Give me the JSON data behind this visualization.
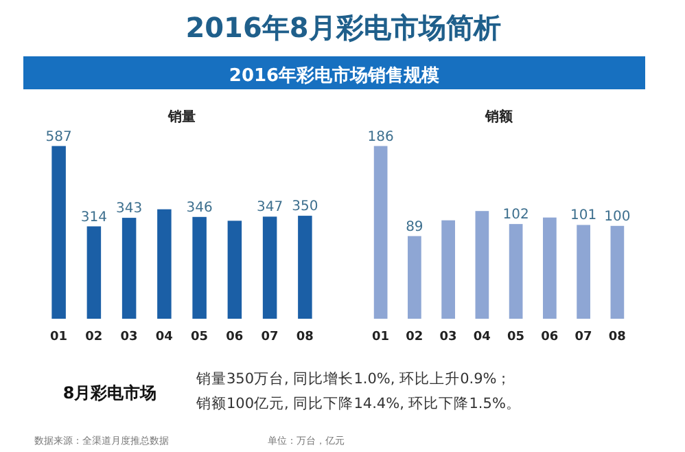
{
  "chart_data": [
    {
      "type": "other",
      "title": "2016年8月彩电市场简析",
      "subtitle": "2016年彩电市场销售规模"
    },
    {
      "type": "bar",
      "title": "销量",
      "categories": [
        "01",
        "02",
        "03",
        "04",
        "05",
        "06",
        "07",
        "08"
      ],
      "values": [
        587,
        314,
        343,
        372,
        346,
        333,
        347,
        350
      ],
      "value_labels": [
        "587",
        "314",
        "343",
        null,
        "346",
        null,
        "347",
        "350"
      ],
      "color": "#1b5fa6",
      "tick_labels": "x"
    },
    {
      "type": "bar",
      "title": "销额",
      "categories": [
        "01",
        "02",
        "03",
        "04",
        "05",
        "06",
        "07",
        "08"
      ],
      "values": [
        186,
        89,
        106,
        116,
        102,
        109,
        101,
        100
      ],
      "value_labels": [
        "186",
        "89",
        null,
        null,
        "102",
        null,
        "101",
        "100"
      ],
      "color": "#8ea6d4",
      "tick_labels": "x"
    },
    {
      "type": "other",
      "title": "8月彩电市场",
      "annotations": [
        "销量350万台, 同比增长1.0%, 环比上升0.9%；",
        "销额100亿元, 同比下降14.4%, 环比下降1.5%。",
        "数据来源：全渠道月度推总数据",
        "单位：万台，亿元"
      ]
    }
  ]
}
